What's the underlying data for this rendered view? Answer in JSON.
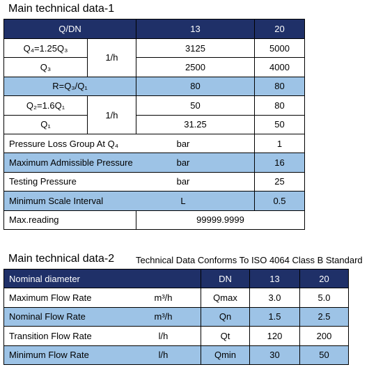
{
  "table1": {
    "title": "Main technical data-1",
    "header": [
      "Q/DN",
      "13",
      "20"
    ],
    "rows": [
      [
        "Q₄=1.25Q₃",
        "1/h",
        "3125",
        "5000"
      ],
      [
        "Q₃",
        "2500",
        "4000"
      ],
      [
        "R=Q₃/Q₁",
        "80",
        "80"
      ],
      [
        "Q₂=1.6Q₁",
        "1/h",
        "50",
        "80"
      ],
      [
        "Q₁",
        "31.25",
        "50"
      ],
      [
        "Pressure Loss Group At Q₄",
        "bar",
        "1"
      ],
      [
        "Maximum Admissible Pressure",
        "bar",
        "16"
      ],
      [
        "Testing Pressure",
        "bar",
        "25"
      ],
      [
        "Minimum Scale Interval",
        "L",
        "0.5"
      ],
      [
        "Max.reading",
        "99999.9999"
      ]
    ]
  },
  "table2": {
    "title": "Main technical data-2",
    "subtitle": "Technical Data Conforms To ISO 4064 Class B Standard",
    "header": [
      "Nominal diameter",
      "DN",
      "13",
      "20"
    ],
    "rows": [
      [
        "Maximum Flow Rate",
        "m³/h",
        "Qmax",
        "3.0",
        "5.0"
      ],
      [
        "Nominal Flow Rate",
        "m³/h",
        "Qn",
        "1.5",
        "2.5"
      ],
      [
        "Transition Flow Rate",
        "l/h",
        "Qt",
        "120",
        "200"
      ],
      [
        "Minimum Flow Rate",
        "l/h",
        "Qmin",
        "30",
        "50"
      ]
    ]
  }
}
